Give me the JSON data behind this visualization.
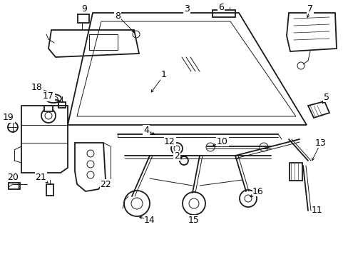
{
  "background_color": "#ffffff",
  "line_color": "#1a1a1a",
  "figsize": [
    4.89,
    3.6
  ],
  "dpi": 100,
  "font_size": 9,
  "lw_main": 1.3,
  "lw_thin": 0.7,
  "lw_med": 1.0
}
